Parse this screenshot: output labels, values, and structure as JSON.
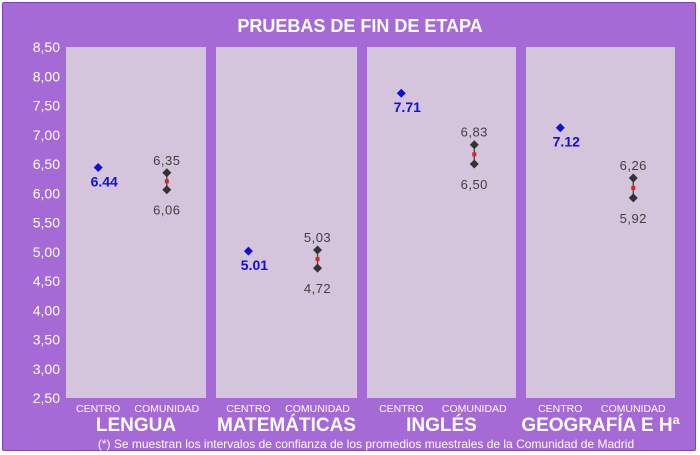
{
  "chart_data": {
    "type": "scatter",
    "title": "PRUEBAS DE FIN DE ETAPA",
    "footnote": "(*) Se muestran los intervalos de confianza de los promedios muestrales de la Comunidad de Madrid",
    "ylim": [
      2.5,
      8.5
    ],
    "yticks": [
      "2,50",
      "3,00",
      "3,50",
      "4,00",
      "4,50",
      "5,00",
      "5,50",
      "6,00",
      "6,50",
      "7,00",
      "7,50",
      "8,00",
      "8,50"
    ],
    "categories": [
      "CENTRO",
      "COMUNIDAD"
    ],
    "grid": false,
    "groups": [
      {
        "name": "LENGUA",
        "centro": 6.44,
        "centro_label": "6.44",
        "comunidad_low": 6.06,
        "comunidad_high": 6.35,
        "comunidad_low_label": "6,06",
        "comunidad_high_label": "6,35"
      },
      {
        "name": "MATEMÁTICAS",
        "centro": 5.01,
        "centro_label": "5.01",
        "comunidad_low": 4.72,
        "comunidad_high": 5.03,
        "comunidad_low_label": "4,72",
        "comunidad_high_label": "5,03"
      },
      {
        "name": "INGLÉS",
        "centro": 7.71,
        "centro_label": "7.71",
        "comunidad_low": 6.5,
        "comunidad_high": 6.83,
        "comunidad_low_label": "6,50",
        "comunidad_high_label": "6,83"
      },
      {
        "name": "GEOGRAFÍA E Hª",
        "centro": 7.12,
        "centro_label": "7.12",
        "comunidad_low": 5.92,
        "comunidad_high": 6.26,
        "comunidad_low_label": "5,92",
        "comunidad_high_label": "6,26"
      }
    ],
    "colors": {
      "background": "#a56ad6",
      "panel": "#d4c4dc",
      "centro_marker": "#1010d8",
      "interval_marker": "#333333",
      "mean_marker": "#e02020",
      "text": "#ffffff"
    }
  }
}
